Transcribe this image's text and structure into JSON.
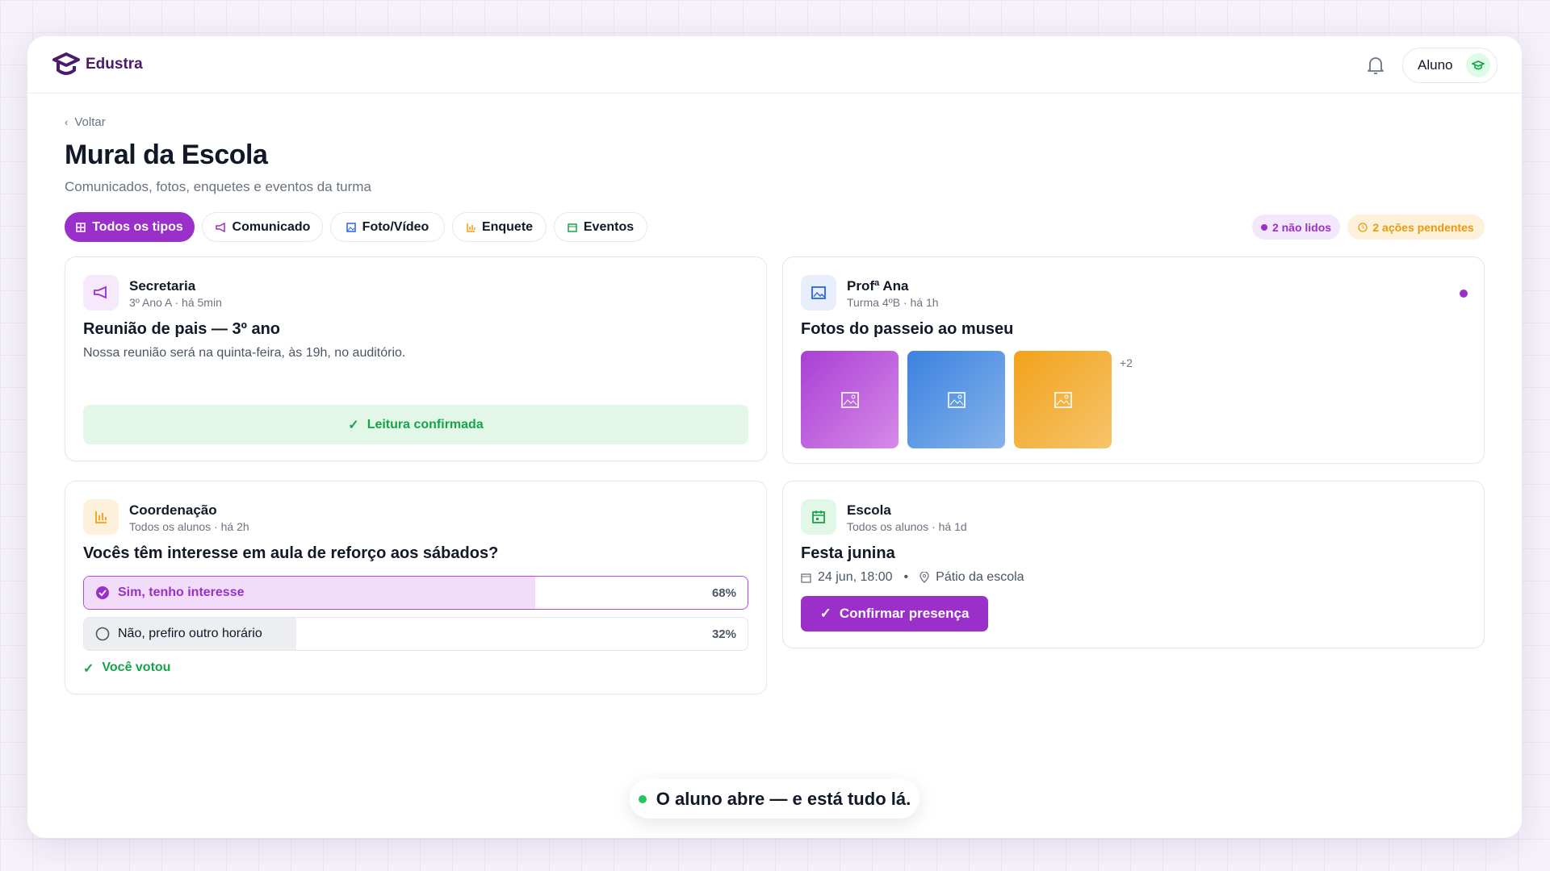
{
  "header": {
    "brand": "Edustra",
    "user": "Aluno"
  },
  "page": {
    "back": "Voltar",
    "title": "Mural da Escola",
    "subtitle": "Comunicados, fotos, enquetes e eventos da turma"
  },
  "filters": [
    "Todos os tipos",
    "Comunicado",
    "Foto/Vídeo",
    "Enquete",
    "Eventos"
  ],
  "badges": [
    "2 não lidos",
    "2 ações pendentes"
  ],
  "posts": [
    {
      "author": "Secretaria",
      "meta": "3º Ano A · há 5min",
      "title": "Reunião de pais — 3º ano",
      "body": "Nossa reunião será na quinta-feira, às 19h, no auditório.",
      "status": "Leitura confirmada"
    },
    {
      "author": "Profª Ana",
      "meta": "Turma 4ºB · há 1h",
      "title": "Fotos do passeio ao museu",
      "more": "+2"
    },
    {
      "author": "Coordenação",
      "meta": "Todos os alunos · há 2h",
      "title": "Vocês têm interesse em aula de reforço aos sábados?",
      "options": [
        {
          "label": "Sim, tenho interesse",
          "percent": 68,
          "percent_label": "68%"
        },
        {
          "label": "Não, prefiro outro horário",
          "percent": 32,
          "percent_label": "32%"
        }
      ],
      "status": "Você votou"
    },
    {
      "author": "Escola",
      "meta": "Todos os alunos · há 1d",
      "title": "Festa junina",
      "date": "24 jun, 18:00",
      "place": "Pátio da escola",
      "action": "Confirmar presença"
    }
  ],
  "caption": "O aluno abre — e está tudo lá."
}
